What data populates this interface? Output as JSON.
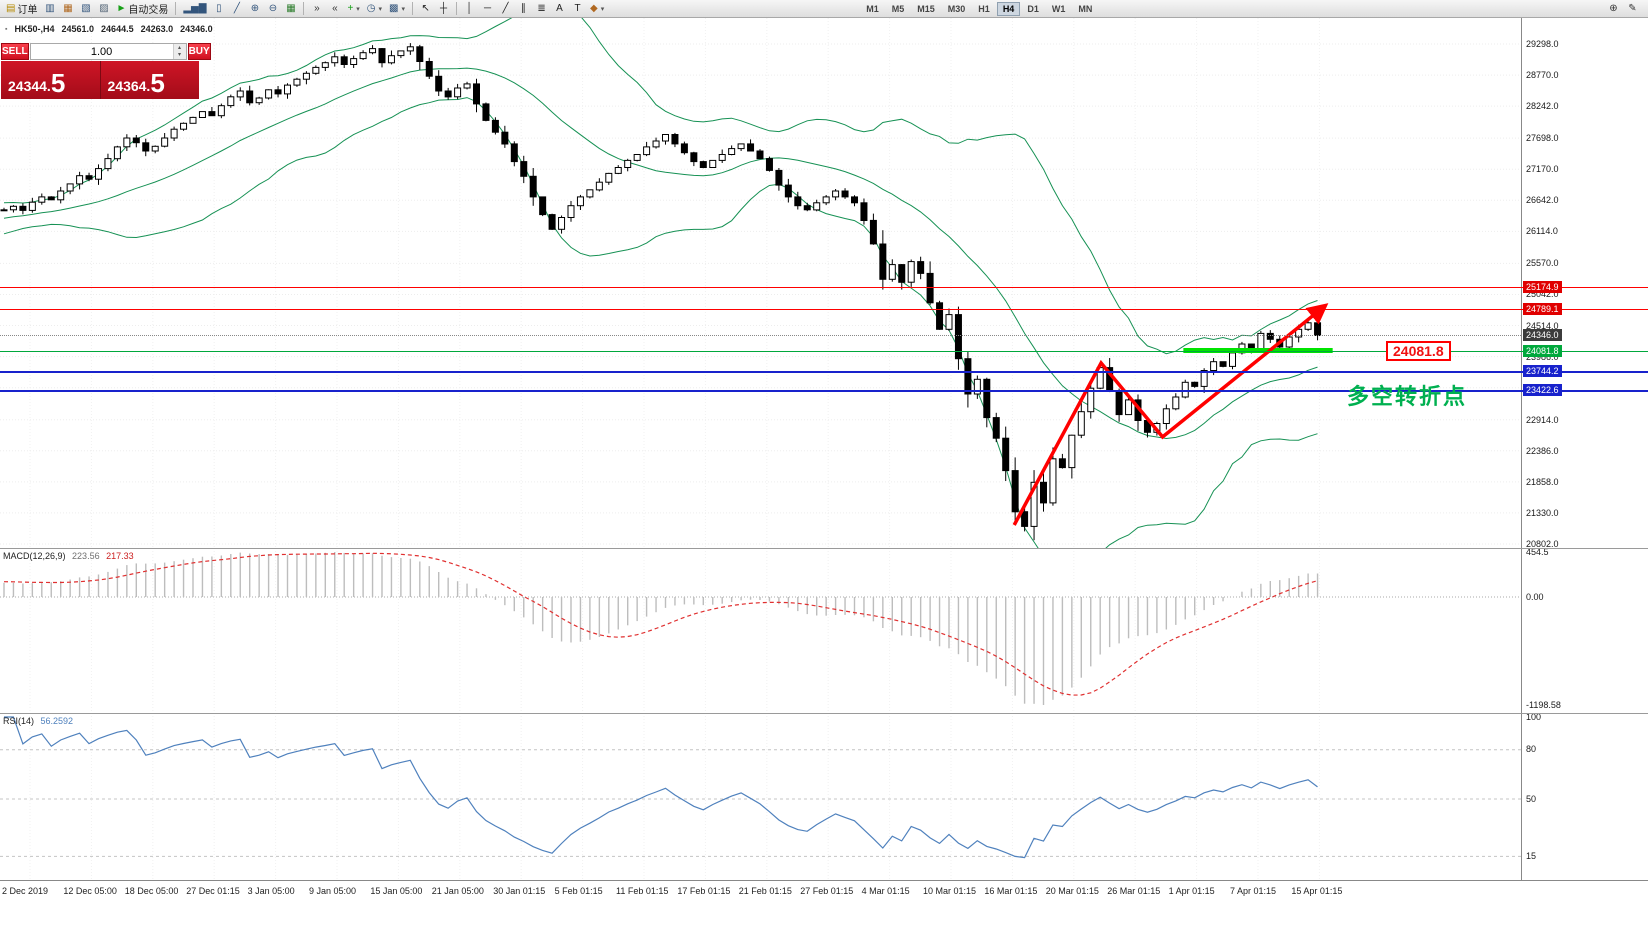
{
  "toolbar": {
    "dropdown_glyph": "▾",
    "left_items": [
      {
        "name": "new-order",
        "glyph": "▤",
        "label": "订单",
        "color": "#b58900"
      },
      {
        "name": "chart-profiles",
        "glyph": "▥",
        "color": "#33557c"
      },
      {
        "name": "market-watch",
        "glyph": "▦",
        "color": "#b06820"
      },
      {
        "name": "navigator",
        "glyph": "▧",
        "color": "#33557c"
      },
      {
        "name": "terminal",
        "glyph": "▨",
        "color": "#567"
      },
      {
        "name": "auto-trading",
        "glyph": "►",
        "label": "自动交易",
        "color": "#17a017"
      },
      {
        "sep": true
      },
      {
        "name": "chart-bars",
        "glyph": "▂▅▇",
        "color": "#33557c"
      },
      {
        "name": "chart-candles",
        "glyph": "▯",
        "color": "#33557c"
      },
      {
        "name": "chart-line",
        "glyph": "╱",
        "color": "#33557c"
      },
      {
        "name": "zoom-in",
        "glyph": "⊕",
        "color": "#33557c"
      },
      {
        "name": "zoom-out",
        "glyph": "⊖",
        "color": "#33557c"
      },
      {
        "name": "grid",
        "glyph": "▦",
        "color": "#2c7d2c"
      },
      {
        "sep": true
      },
      {
        "name": "auto-scroll",
        "glyph": "»",
        "color": "#333"
      },
      {
        "name": "chart-shift",
        "glyph": "«",
        "color": "#333"
      },
      {
        "name": "indicators",
        "glyph": "+",
        "color": "#17a017",
        "dropdown": true
      },
      {
        "name": "periods",
        "glyph": "◷",
        "color": "#33557c",
        "dropdown": true
      },
      {
        "name": "templates",
        "glyph": "▩",
        "color": "#33557c",
        "dropdown": true
      },
      {
        "sep": true
      },
      {
        "name": "cursor",
        "glyph": "↖",
        "color": "#222"
      },
      {
        "name": "crosshair",
        "glyph": "┼",
        "color": "#222"
      },
      {
        "sep": true
      },
      {
        "name": "vertical-line",
        "glyph": "│",
        "color": "#222"
      },
      {
        "name": "horizontal-line",
        "glyph": "─",
        "color": "#222"
      },
      {
        "name": "trendline",
        "glyph": "╱",
        "color": "#222"
      },
      {
        "name": "equidistant-channel",
        "glyph": "∥",
        "color": "#222"
      },
      {
        "name": "fibonacci",
        "glyph": "≣",
        "color": "#222"
      },
      {
        "name": "text",
        "glyph": "A",
        "color": "#222"
      },
      {
        "name": "text-label",
        "glyph": "T",
        "color": "#222"
      },
      {
        "name": "arrows",
        "glyph": "◆",
        "color": "#b06820",
        "dropdown": true
      }
    ],
    "timeframes": [
      "M1",
      "M5",
      "M15",
      "M30",
      "H1",
      "H4",
      "D1",
      "W1",
      "MN"
    ],
    "active_timeframe": "H4",
    "right_items": [
      {
        "name": "search",
        "glyph": "⊕"
      },
      {
        "name": "new-post",
        "glyph": "✎"
      }
    ]
  },
  "chart_header": {
    "prefix_icon": "▪",
    "symbol": "HK50-,H4",
    "open": "24561.0",
    "high": "24644.5",
    "low": "24263.0",
    "close": "24346.0"
  },
  "trade_panel": {
    "sell_label": "SELL",
    "buy_label": "BUY",
    "volume": "1.00",
    "spin_up": "▴",
    "spin_down": "▾",
    "sell_price_main": "24344.",
    "sell_price_big": "5",
    "buy_price_main": "24364.",
    "buy_price_big": "5"
  },
  "price_scale": {
    "ticks": [
      "29298.0",
      "28770.0",
      "28242.0",
      "27698.0",
      "27170.0",
      "26642.0",
      "26114.0",
      "25570.0",
      "25042.0",
      "24514.0",
      "23986.0",
      "23458.0",
      "22914.0",
      "22386.0",
      "21858.0",
      "21330.0",
      "20802.0"
    ],
    "line_labels": [
      {
        "text": "25174.9",
        "value": 25174.9,
        "bg": "#e00000"
      },
      {
        "text": "24789.1",
        "value": 24789.1,
        "bg": "#e00000"
      },
      {
        "text": "24346.0",
        "value": 24346.0,
        "bg": "#3c3c3c"
      },
      {
        "text": "24081.8",
        "value": 24081.8,
        "bg": "#00a83c"
      },
      {
        "text": "23744.2",
        "value": 23744.2,
        "bg": "#1822cc"
      },
      {
        "text": "23422.6",
        "value": 23422.6,
        "bg": "#1822cc"
      }
    ]
  },
  "macd": {
    "label": "MACD(12,26,9)",
    "v1": "223.56",
    "v2": "217.33",
    "scale": [
      "454.5",
      "0.00",
      "-1198.58"
    ]
  },
  "rsi": {
    "label": "RSI(14)",
    "value": "56.2592",
    "scale": [
      "100",
      "80",
      "50",
      "15"
    ]
  },
  "time_axis": {
    "dates": [
      "2 Dec 2019",
      "12 Dec 05:00",
      "18 Dec 05:00",
      "27 Dec 01:15",
      "3 Jan 05:00",
      "9 Jan 05:00",
      "15 Jan 05:00",
      "21 Jan 05:00",
      "30 Jan 01:15",
      "5 Feb 01:15",
      "11 Feb 01:15",
      "17 Feb 01:15",
      "21 Feb 01:15",
      "27 Feb 01:15",
      "4 Mar 01:15",
      "10 Mar 01:15",
      "16 Mar 01:15",
      "20 Mar 01:15",
      "26 Mar 01:15",
      "1 Apr 01:15",
      "7 Apr 01:15",
      "15 Apr 01:15"
    ]
  },
  "annotations": {
    "callout": "24081.8",
    "turning_point": "多空转折点"
  },
  "chart_data": {
    "type": "candlestick",
    "symbol": "HK50-",
    "timeframe": "H4",
    "visible_from": 25,
    "price_axis": {
      "max": 29298.0,
      "min": 20802.0
    },
    "closes": [
      25750,
      25800,
      25850,
      25900,
      25950,
      26000,
      26050,
      26100,
      26140,
      26180,
      26220,
      26260,
      26290,
      26320,
      26350,
      26370,
      26390,
      26410,
      26430,
      26440,
      26450,
      26455,
      26460,
      26465,
      26470,
      26480,
      26540,
      26470,
      26610,
      26700,
      26650,
      26800,
      26920,
      27060,
      27000,
      27180,
      27350,
      27550,
      27700,
      27620,
      27480,
      27560,
      27700,
      27850,
      27950,
      28050,
      28150,
      28080,
      28250,
      28400,
      28500,
      28300,
      28380,
      28520,
      28450,
      28600,
      28700,
      28800,
      28900,
      28980,
      29080,
      28950,
      29050,
      29150,
      29220,
      28980,
      29100,
      29180,
      29250,
      29000,
      28750,
      28500,
      28400,
      28550,
      28620,
      28280,
      28000,
      27800,
      27600,
      27300,
      27050,
      26700,
      26400,
      26150,
      26350,
      26550,
      26700,
      26820,
      26950,
      27100,
      27200,
      27320,
      27420,
      27550,
      27650,
      27760,
      27600,
      27450,
      27300,
      27200,
      27320,
      27420,
      27520,
      27600,
      27480,
      27350,
      27150,
      26900,
      26700,
      26550,
      26480,
      26600,
      26700,
      26800,
      26700,
      26600,
      26300,
      25900,
      25300,
      25550,
      25250,
      25600,
      25400,
      24900,
      24450,
      24700,
      23950,
      23350,
      23600,
      22950,
      22600,
      22050,
      21350,
      21100,
      21850,
      21500,
      22250,
      22100,
      22650,
      23050,
      23450,
      23800,
      23400,
      23000,
      23250,
      22900,
      22700,
      22850,
      23100,
      23300,
      23550,
      23480,
      23750,
      23900,
      23820,
      24050,
      24200,
      24080,
      24380,
      24280,
      24150,
      24320,
      24450,
      24561,
      24346
    ],
    "last_candle": {
      "o": 24561.0,
      "h": 24644.5,
      "l": 24263.0,
      "c": 24346.0
    },
    "bollinger": {
      "period": 20,
      "deviation": 2,
      "color": "#169154"
    },
    "h_lines": [
      {
        "price": 25174.9,
        "color": "#ff0000",
        "w": 1
      },
      {
        "price": 24789.1,
        "color": "#ff0000",
        "w": 1
      },
      {
        "price": 24081.8,
        "color": "#00a83c",
        "w": 1
      },
      {
        "price": 23744.2,
        "color": "#1822cc",
        "w": 2
      },
      {
        "price": 23422.6,
        "color": "#1822cc",
        "w": 2
      }
    ],
    "current_price": 24346.0,
    "support_zone": {
      "from_vi": 124.8,
      "to_vi": 140.6,
      "price": 24090,
      "color": "#00e400",
      "w": 5
    },
    "trend_arrow": {
      "color": "#ff0000",
      "w": 3.5,
      "points_vi_price": [
        [
          106.9,
          21125
        ],
        [
          116.1,
          23878
        ],
        [
          122.6,
          22621
        ],
        [
          139.8,
          24850
        ]
      ]
    },
    "macd_params": {
      "fast": 12,
      "slow": 26,
      "signal": 9,
      "hist_color": "#bdbdbd",
      "signal_color": "#e03030"
    },
    "rsi_params": {
      "period": 14,
      "color": "#4f81bd",
      "levels": [
        80,
        50,
        15
      ]
    }
  }
}
